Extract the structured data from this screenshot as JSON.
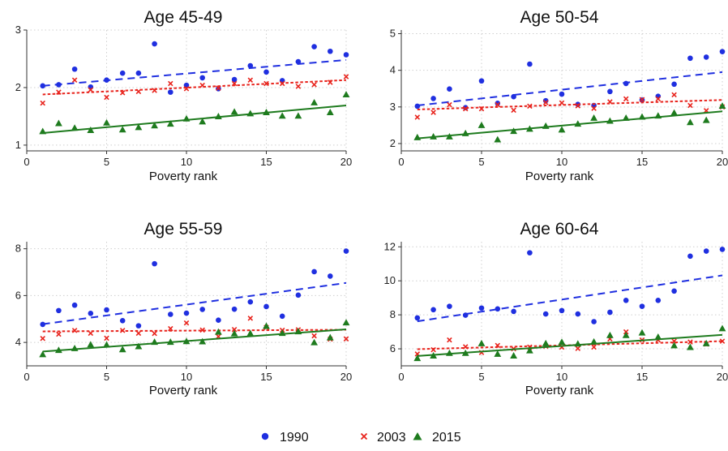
{
  "figure": {
    "legend": [
      {
        "label": "1990",
        "color": "#1f2fe0",
        "marker": "circle",
        "line": "dashed"
      },
      {
        "label": "2003",
        "color": "#e8231c",
        "marker": "cross",
        "line": "dotted"
      },
      {
        "label": "2015",
        "color": "#1e7b1e",
        "marker": "triangle",
        "line": "solid"
      }
    ]
  },
  "chart_data": [
    {
      "type": "scatter",
      "title": "Age 45-49",
      "xlabel": "Poverty rank",
      "ylabel": "",
      "xlim": [
        0,
        20
      ],
      "ylim": [
        0.9,
        3.0
      ],
      "xticks": [
        0,
        5,
        10,
        15,
        20
      ],
      "yticks": [
        1,
        2,
        3
      ],
      "grid": true,
      "x": [
        1,
        2,
        3,
        4,
        5,
        6,
        7,
        8,
        9,
        10,
        11,
        12,
        13,
        14,
        15,
        16,
        17,
        18,
        19,
        20
      ],
      "series": [
        {
          "name": "1990",
          "values": [
            2.03,
            2.05,
            2.32,
            2.01,
            2.13,
            2.25,
            2.25,
            2.76,
            1.92,
            2.04,
            2.17,
            1.98,
            2.14,
            2.38,
            2.27,
            2.12,
            2.45,
            2.71,
            2.63,
            2.57
          ],
          "fit": [
            2.03,
            2.48
          ]
        },
        {
          "name": "2003",
          "values": [
            1.73,
            1.92,
            2.13,
            1.96,
            1.83,
            1.91,
            1.93,
            1.95,
            2.07,
            1.98,
            2.04,
            1.99,
            2.07,
            2.13,
            2.07,
            2.07,
            2.02,
            2.05,
            2.09,
            2.19
          ],
          "fit": [
            1.88,
            2.13
          ]
        },
        {
          "name": "2015",
          "values": [
            1.24,
            1.38,
            1.3,
            1.26,
            1.39,
            1.27,
            1.31,
            1.34,
            1.37,
            1.46,
            1.41,
            1.5,
            1.58,
            1.55,
            1.57,
            1.51,
            1.51,
            1.74,
            1.57,
            1.88
          ],
          "fit": [
            1.21,
            1.69
          ]
        }
      ]
    },
    {
      "type": "scatter",
      "title": "Age 50-54",
      "xlabel": "Poverty rank",
      "ylabel": "",
      "xlim": [
        0,
        20
      ],
      "ylim": [
        1.8,
        5.1
      ],
      "xticks": [
        0,
        5,
        10,
        15,
        20
      ],
      "yticks": [
        2,
        3,
        4,
        5
      ],
      "grid": true,
      "x": [
        1,
        2,
        3,
        4,
        5,
        6,
        7,
        8,
        9,
        10,
        11,
        12,
        13,
        14,
        15,
        16,
        17,
        18,
        19,
        20
      ],
      "series": [
        {
          "name": "1990",
          "values": [
            3.02,
            3.23,
            3.49,
            2.98,
            3.71,
            3.1,
            3.28,
            4.17,
            3.17,
            3.35,
            3.07,
            3.04,
            3.42,
            3.64,
            3.19,
            3.29,
            3.62,
            4.33,
            4.36,
            4.51
          ],
          "fit": [
            3.04,
            3.95
          ]
        },
        {
          "name": "2003",
          "values": [
            2.72,
            2.85,
            3.06,
            2.95,
            2.95,
            3.06,
            2.91,
            3.02,
            3.12,
            3.11,
            3.03,
            2.96,
            3.14,
            3.22,
            3.2,
            3.22,
            3.33,
            3.04,
            2.9,
            3.0
          ],
          "fit": [
            2.93,
            3.19
          ]
        },
        {
          "name": "2015",
          "values": [
            2.17,
            2.19,
            2.19,
            2.28,
            2.5,
            2.11,
            2.34,
            2.4,
            2.48,
            2.38,
            2.54,
            2.7,
            2.62,
            2.7,
            2.73,
            2.76,
            2.84,
            2.58,
            2.64,
            3.03
          ],
          "fit": [
            2.14,
            2.88
          ]
        }
      ]
    },
    {
      "type": "scatter",
      "title": "Age 55-59",
      "xlabel": "Poverty rank",
      "ylabel": "",
      "xlim": [
        0,
        20
      ],
      "ylim": [
        3.0,
        8.3
      ],
      "xticks": [
        0,
        5,
        10,
        15,
        20
      ],
      "yticks": [
        4,
        6,
        8
      ],
      "grid": true,
      "x": [
        1,
        2,
        3,
        4,
        5,
        6,
        7,
        8,
        9,
        10,
        11,
        12,
        13,
        14,
        15,
        16,
        17,
        18,
        19,
        20
      ],
      "series": [
        {
          "name": "1990",
          "values": [
            4.77,
            5.36,
            5.59,
            5.24,
            5.39,
            4.93,
            4.71,
            7.36,
            5.2,
            5.25,
            5.41,
            4.95,
            5.42,
            5.73,
            5.53,
            5.12,
            6.02,
            7.02,
            6.83,
            7.9
          ],
          "fit": [
            4.78,
            6.54
          ]
        },
        {
          "name": "2003",
          "values": [
            4.17,
            4.35,
            4.51,
            4.39,
            4.18,
            4.51,
            4.39,
            4.38,
            4.59,
            4.83,
            4.53,
            4.25,
            4.55,
            5.03,
            4.64,
            4.52,
            4.54,
            4.28,
            4.14,
            4.15
          ],
          "fit": [
            4.47,
            4.54
          ]
        },
        {
          "name": "2015",
          "values": [
            3.49,
            3.67,
            3.75,
            3.91,
            3.9,
            3.7,
            3.83,
            4.02,
            4.02,
            4.05,
            4.04,
            4.45,
            4.38,
            4.39,
            4.7,
            4.4,
            4.47,
            4.0,
            4.21,
            4.85
          ],
          "fit": [
            3.61,
            4.56
          ]
        }
      ]
    },
    {
      "type": "scatter",
      "title": "Age 60-64",
      "xlabel": "Poverty rank",
      "ylabel": "",
      "xlim": [
        0,
        20
      ],
      "ylim": [
        5.0,
        12.3
      ],
      "xticks": [
        0,
        5,
        10,
        15,
        20
      ],
      "yticks": [
        6,
        8,
        10,
        12
      ],
      "grid": true,
      "x": [
        1,
        2,
        3,
        4,
        5,
        6,
        7,
        8,
        9,
        10,
        11,
        12,
        13,
        14,
        15,
        16,
        17,
        18,
        19,
        20
      ],
      "series": [
        {
          "name": "1990",
          "values": [
            7.82,
            8.3,
            8.5,
            7.98,
            8.4,
            8.35,
            8.2,
            11.65,
            8.05,
            8.25,
            8.05,
            7.6,
            8.15,
            8.85,
            8.5,
            8.85,
            9.4,
            11.45,
            11.75,
            11.85
          ],
          "fit": [
            7.62,
            10.32
          ]
        },
        {
          "name": "2003",
          "values": [
            5.7,
            5.95,
            6.52,
            6.12,
            5.78,
            6.2,
            6.0,
            6.1,
            6.15,
            6.1,
            6.02,
            6.1,
            6.58,
            7.0,
            6.52,
            6.52,
            6.45,
            6.4,
            6.28,
            6.45
          ],
          "fit": [
            5.98,
            6.45
          ]
        },
        {
          "name": "2015",
          "values": [
            5.45,
            5.6,
            5.75,
            5.75,
            6.32,
            5.7,
            5.6,
            5.9,
            6.32,
            6.4,
            6.3,
            6.42,
            6.8,
            6.8,
            6.95,
            6.7,
            6.2,
            6.1,
            6.32,
            7.2
          ],
          "fit": [
            5.58,
            6.82
          ]
        }
      ]
    }
  ]
}
